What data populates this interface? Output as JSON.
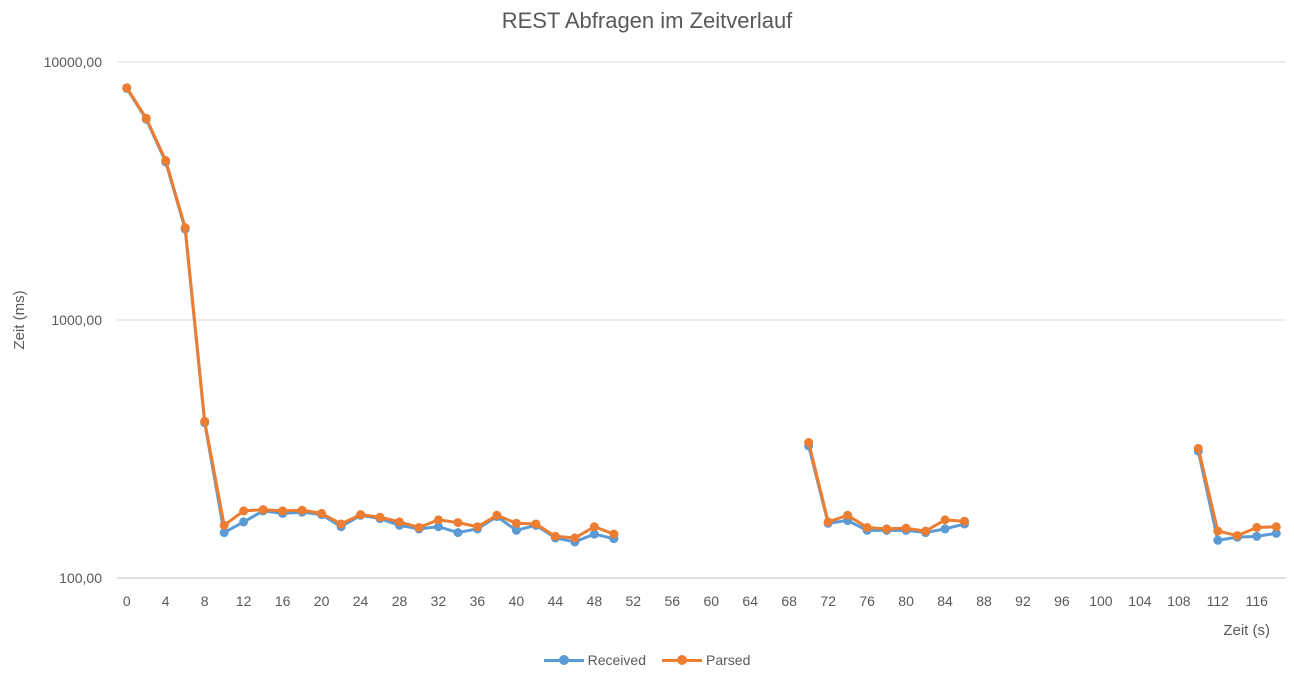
{
  "chart_data": {
    "type": "line",
    "title": "REST Abfragen im Zeitverlauf",
    "xlabel": "Zeit (s)",
    "ylabel": "Zeit (ms)",
    "yscale": "log",
    "ylim": [
      100,
      10000
    ],
    "y_ticks": [
      "100,00",
      "1000,00",
      "10000,00"
    ],
    "x_ticks": [
      0,
      4,
      8,
      12,
      16,
      20,
      24,
      28,
      32,
      36,
      40,
      44,
      48,
      52,
      56,
      60,
      64,
      68,
      72,
      76,
      80,
      84,
      88,
      92,
      96,
      100,
      104,
      108,
      112,
      116
    ],
    "xlim": [
      -1,
      119
    ],
    "grid": true,
    "legend_position": "bottom",
    "series": [
      {
        "name": "Received",
        "color": "#5B9BD5",
        "segments": [
          [
            [
              0,
              7900
            ],
            [
              2,
              6000
            ],
            [
              4,
              4100
            ],
            [
              6,
              2250
            ],
            [
              8,
              400
            ],
            [
              10,
              150
            ],
            [
              12,
              165
            ],
            [
              14,
              182
            ],
            [
              16,
              178
            ],
            [
              18,
              180
            ],
            [
              20,
              176
            ],
            [
              22,
              158
            ],
            [
              24,
              175
            ],
            [
              26,
              170
            ],
            [
              28,
              160
            ],
            [
              30,
              155
            ],
            [
              32,
              158
            ],
            [
              34,
              150
            ],
            [
              36,
              155
            ],
            [
              38,
              173
            ],
            [
              40,
              153
            ],
            [
              42,
              160
            ],
            [
              44,
              143
            ],
            [
              46,
              138
            ],
            [
              48,
              148
            ],
            [
              50,
              142
            ]
          ],
          [
            [
              70,
              325
            ],
            [
              72,
              163
            ],
            [
              74,
              167
            ],
            [
              76,
              153
            ],
            [
              78,
              153
            ],
            [
              80,
              153
            ],
            [
              82,
              150
            ],
            [
              84,
              155
            ],
            [
              86,
              162
            ]
          ],
          [
            [
              110,
              310
            ],
            [
              112,
              140
            ],
            [
              114,
              144
            ],
            [
              116,
              145
            ],
            [
              118,
              149
            ]
          ]
        ]
      },
      {
        "name": "Parsed",
        "color": "#ED7D31",
        "segments": [
          [
            [
              0,
              7950
            ],
            [
              2,
              6050
            ],
            [
              4,
              4150
            ],
            [
              6,
              2280
            ],
            [
              8,
              405
            ],
            [
              10,
              160
            ],
            [
              12,
              182
            ],
            [
              14,
              184
            ],
            [
              16,
              182
            ],
            [
              18,
              183
            ],
            [
              20,
              178
            ],
            [
              22,
              162
            ],
            [
              24,
              176
            ],
            [
              26,
              172
            ],
            [
              28,
              165
            ],
            [
              30,
              157
            ],
            [
              32,
              168
            ],
            [
              34,
              164
            ],
            [
              36,
              158
            ],
            [
              38,
              175
            ],
            [
              40,
              163
            ],
            [
              42,
              162
            ],
            [
              44,
              145
            ],
            [
              46,
              143
            ],
            [
              48,
              158
            ],
            [
              50,
              148
            ]
          ],
          [
            [
              70,
              335
            ],
            [
              72,
              165
            ],
            [
              74,
              175
            ],
            [
              76,
              157
            ],
            [
              78,
              155
            ],
            [
              80,
              156
            ],
            [
              82,
              152
            ],
            [
              84,
              168
            ],
            [
              86,
              166
            ]
          ],
          [
            [
              110,
              318
            ],
            [
              112,
              152
            ],
            [
              114,
              146
            ],
            [
              116,
              157
            ],
            [
              118,
              158
            ]
          ]
        ]
      }
    ]
  }
}
